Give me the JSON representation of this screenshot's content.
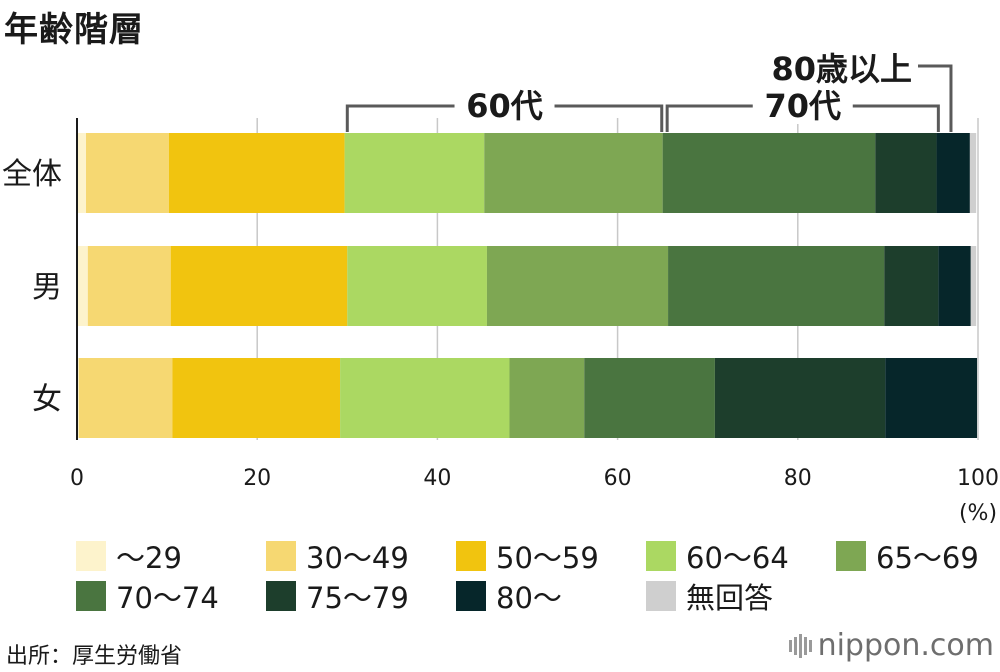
{
  "title": "年齢階層",
  "source": "出所：厚生労働省",
  "logo": "nippon.com",
  "chart_data": {
    "type": "bar",
    "orientation": "horizontal",
    "stacked": true,
    "categories": [
      "全体",
      "男",
      "女"
    ],
    "unit": "(%)",
    "xlim": [
      0,
      100
    ],
    "xticks": [
      0,
      20,
      40,
      60,
      80,
      100
    ],
    "grid": true,
    "legend_placement": "bottom",
    "series": [
      {
        "name": "～29",
        "color": "#fdf3cc",
        "values": [
          1.0,
          1.2,
          0.2
        ]
      },
      {
        "name": "30～49",
        "color": "#f6d872",
        "values": [
          9.2,
          9.2,
          10.4
        ]
      },
      {
        "name": "50～59",
        "color": "#f1c40f",
        "values": [
          19.5,
          19.6,
          18.6
        ]
      },
      {
        "name": "60～64",
        "color": "#abd862",
        "values": [
          15.5,
          15.5,
          18.8
        ]
      },
      {
        "name": "65～69",
        "color": "#7ea753",
        "values": [
          19.8,
          20.1,
          8.3
        ]
      },
      {
        "name": "70～74",
        "color": "#4a7540",
        "values": [
          23.6,
          24.0,
          14.5
        ]
      },
      {
        "name": "75～79",
        "color": "#1d3e2c",
        "values": [
          6.8,
          6.0,
          18.9
        ]
      },
      {
        "name": "80～",
        "color": "#06262a",
        "values": [
          3.7,
          3.6,
          10.2
        ]
      },
      {
        "name": "無回答",
        "color": "#cfcfcf",
        "values": [
          0.7,
          0.6,
          0.1
        ]
      }
    ],
    "annotations": [
      {
        "label": "60代",
        "from": 30.0,
        "to": 64.9
      },
      {
        "label": "70代",
        "from": 65.5,
        "to": 95.6
      },
      {
        "label": "80歳以上",
        "at": 97.0
      }
    ]
  }
}
